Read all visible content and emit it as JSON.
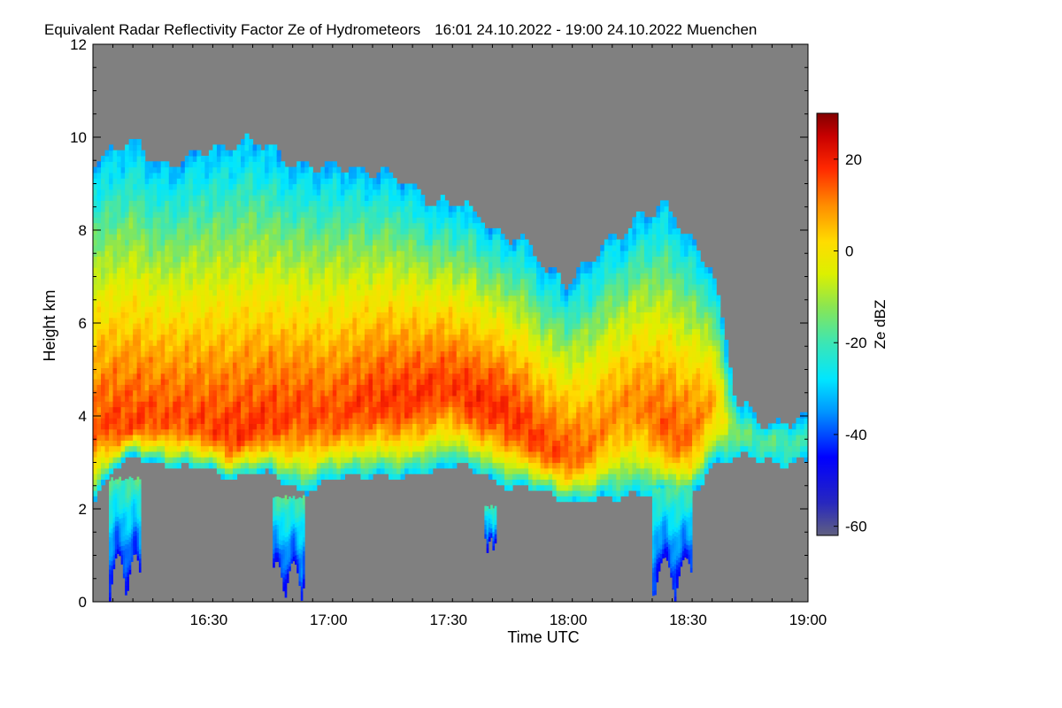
{
  "chart_data": {
    "type": "heatmap",
    "title": "Equivalent Radar Reflectivity Factor Ze of Hydrometeors",
    "time_range": "16:01 24.10.2022 - 19:00 24.10.2022",
    "location": "Muenchen",
    "xlabel": "Time UTC",
    "ylabel": "Height km",
    "xlim_minutes": [
      961,
      1140
    ],
    "x_ticks": [
      {
        "minute": 990,
        "label": "16:30"
      },
      {
        "minute": 1020,
        "label": "17:00"
      },
      {
        "minute": 1050,
        "label": "17:30"
      },
      {
        "minute": 1080,
        "label": "18:00"
      },
      {
        "minute": 1110,
        "label": "18:30"
      },
      {
        "minute": 1140,
        "label": "19:00"
      }
    ],
    "ylim": [
      0,
      12
    ],
    "y_ticks": [
      0,
      2,
      4,
      6,
      8,
      10,
      12
    ],
    "colorbar": {
      "label": "Ze dBZ",
      "range": [
        -62,
        30
      ],
      "ticks": [
        {
          "value": 20,
          "label": "20"
        },
        {
          "value": 0,
          "label": "0"
        },
        {
          "value": -20,
          "label": "-20"
        },
        {
          "value": -40,
          "label": "-40"
        },
        {
          "value": -60,
          "label": "-60"
        }
      ]
    },
    "background_color": "#808080",
    "echo_profile": [
      {
        "minute": 961,
        "base": 2.2,
        "top": 9.6,
        "core": 4.0,
        "peak": 14
      },
      {
        "minute": 966,
        "base": 2.9,
        "top": 9.7,
        "core": 3.8,
        "peak": 16
      },
      {
        "minute": 972,
        "base": 3.1,
        "top": 9.8,
        "core": 3.9,
        "peak": 16
      },
      {
        "minute": 978,
        "base": 3.0,
        "top": 9.5,
        "core": 4.0,
        "peak": 15
      },
      {
        "minute": 984,
        "base": 2.9,
        "top": 9.4,
        "core": 4.0,
        "peak": 15
      },
      {
        "minute": 990,
        "base": 2.8,
        "top": 9.7,
        "core": 3.8,
        "peak": 16
      },
      {
        "minute": 996,
        "base": 2.7,
        "top": 10.0,
        "core": 3.6,
        "peak": 17
      },
      {
        "minute": 1002,
        "base": 2.8,
        "top": 9.8,
        "core": 3.8,
        "peak": 17
      },
      {
        "minute": 1008,
        "base": 2.6,
        "top": 9.6,
        "core": 4.0,
        "peak": 16
      },
      {
        "minute": 1014,
        "base": 2.4,
        "top": 9.5,
        "core": 4.2,
        "peak": 15
      },
      {
        "minute": 1020,
        "base": 2.6,
        "top": 9.2,
        "core": 4.0,
        "peak": 15
      },
      {
        "minute": 1026,
        "base": 2.7,
        "top": 9.4,
        "core": 4.2,
        "peak": 16
      },
      {
        "minute": 1032,
        "base": 2.8,
        "top": 9.3,
        "core": 4.4,
        "peak": 17
      },
      {
        "minute": 1038,
        "base": 2.6,
        "top": 9.0,
        "core": 4.4,
        "peak": 17
      },
      {
        "minute": 1044,
        "base": 2.8,
        "top": 8.8,
        "core": 4.6,
        "peak": 17
      },
      {
        "minute": 1050,
        "base": 3.0,
        "top": 8.6,
        "core": 4.8,
        "peak": 16
      },
      {
        "minute": 1056,
        "base": 2.8,
        "top": 8.3,
        "core": 4.4,
        "peak": 18
      },
      {
        "minute": 1062,
        "base": 2.6,
        "top": 8.1,
        "core": 4.3,
        "peak": 18
      },
      {
        "minute": 1068,
        "base": 2.5,
        "top": 7.8,
        "core": 3.9,
        "peak": 17
      },
      {
        "minute": 1074,
        "base": 2.3,
        "top": 7.1,
        "core": 3.4,
        "peak": 16
      },
      {
        "minute": 1080,
        "base": 2.2,
        "top": 7.0,
        "core": 3.2,
        "peak": 14
      },
      {
        "minute": 1086,
        "base": 2.2,
        "top": 7.3,
        "core": 3.4,
        "peak": 11
      },
      {
        "minute": 1092,
        "base": 2.2,
        "top": 7.8,
        "core": 4.2,
        "peak": 9
      },
      {
        "minute": 1098,
        "base": 2.4,
        "top": 8.4,
        "core": 4.4,
        "peak": 10
      },
      {
        "minute": 1104,
        "base": 2.3,
        "top": 8.4,
        "core": 3.8,
        "peak": 14
      },
      {
        "minute": 1110,
        "base": 2.2,
        "top": 7.9,
        "core": 3.6,
        "peak": 13
      },
      {
        "minute": 1116,
        "base": 3.0,
        "top": 7.3,
        "core": 4.4,
        "peak": 7
      },
      {
        "minute": 1122,
        "base": 3.1,
        "top": 4.2,
        "core": 3.7,
        "peak": -14
      },
      {
        "minute": 1128,
        "base": 3.1,
        "top": 3.9,
        "core": 3.5,
        "peak": -18
      },
      {
        "minute": 1134,
        "base": 3.0,
        "top": 3.9,
        "core": 3.5,
        "peak": -18
      },
      {
        "minute": 1140,
        "base": 3.0,
        "top": 3.8,
        "core": 3.5,
        "peak": -20
      }
    ],
    "precipitation_fallstreaks": [
      {
        "start_minute": 965,
        "end_minute": 973,
        "from_height": 2.6,
        "to_height": 0.0
      },
      {
        "start_minute": 1006,
        "end_minute": 1014,
        "from_height": 2.2,
        "to_height": 0.0
      },
      {
        "start_minute": 1059,
        "end_minute": 1062,
        "from_height": 2.0,
        "to_height": 1.0
      },
      {
        "start_minute": 1101,
        "end_minute": 1111,
        "from_height": 2.4,
        "to_height": 0.0
      }
    ]
  }
}
